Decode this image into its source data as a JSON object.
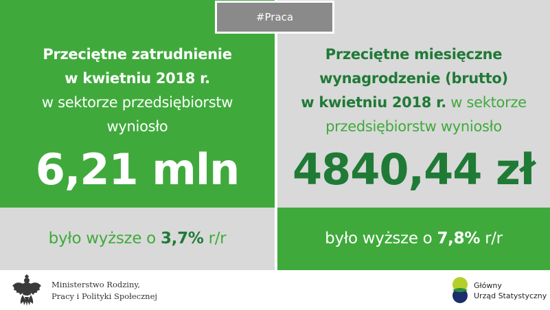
{
  "tag": "#Praca",
  "left": {
    "line1": "Przeciętne zatrudnienie",
    "line2": "w kwietniu 2018 r.",
    "line3": "w sektorze przedsiębiorstw",
    "line4": "wyniosło",
    "value": "6,21 mln",
    "change_prefix": "było wyższe o ",
    "change_value": "3,7%",
    "change_suffix": " r/r"
  },
  "right": {
    "line1": "Przeciętne miesięczne",
    "line2": "wynagrodzenie  (brutto)",
    "line3_bold": "w kwietniu 2018  r.",
    "line3_rest": " w sektorze",
    "line4": "przedsiębiorstw wyniosło",
    "value": "4840,44 zł",
    "change_prefix": "było wyższe o ",
    "change_value": "7,8%",
    "change_suffix": " r/r"
  },
  "footer": {
    "ministry_line1": "Ministerstwo Rodziny,",
    "ministry_line2": "Pracy i Polityki Społecznej",
    "gus_line1": "Główny",
    "gus_line2": "Urząd Statystyczny"
  },
  "colors": {
    "green": "#3faa3b",
    "dark_green": "#1f7a36",
    "gray": "#d9d9d9",
    "tag_gray": "#8a8a8a"
  },
  "icons": [
    "polish-eagle-emblem-icon",
    "gus-logo-icon"
  ]
}
